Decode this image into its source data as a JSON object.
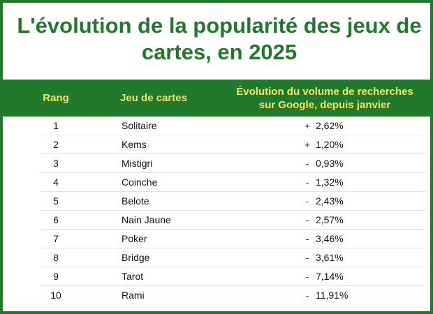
{
  "chart_data": {
    "type": "table",
    "title": "L'évolution de la popularité des jeux de cartes, en 2025",
    "columns": [
      "Rang",
      "Jeu de cartes",
      "Évolution du volume de recherches sur Google, depuis janvier"
    ],
    "rows": [
      {
        "rank": "1",
        "game": "Solitaire",
        "sign": "+",
        "change": "2,62%",
        "value": 2.62
      },
      {
        "rank": "2",
        "game": "Kems",
        "sign": "+",
        "change": "1,20%",
        "value": 1.2
      },
      {
        "rank": "3",
        "game": "Mistigri",
        "sign": "-",
        "change": "0,93%",
        "value": -0.93
      },
      {
        "rank": "4",
        "game": "Coinche",
        "sign": "-",
        "change": "1,32%",
        "value": -1.32
      },
      {
        "rank": "5",
        "game": "Belote",
        "sign": "-",
        "change": "2,43%",
        "value": -2.43
      },
      {
        "rank": "6",
        "game": "Nain Jaune",
        "sign": "-",
        "change": "2,57%",
        "value": -2.57
      },
      {
        "rank": "7",
        "game": "Poker",
        "sign": "-",
        "change": "3,46%",
        "value": -3.46
      },
      {
        "rank": "8",
        "game": "Bridge",
        "sign": "-",
        "change": "3,61%",
        "value": -3.61
      },
      {
        "rank": "9",
        "game": "Tarot",
        "sign": "-",
        "change": "7,14%",
        "value": -7.14
      },
      {
        "rank": "10",
        "game": "Rami",
        "sign": "-",
        "change": "11,91%",
        "value": -11.91
      }
    ]
  },
  "colors": {
    "accent": "#217a2b",
    "header_text": "#f7e36a",
    "row_text": "#111111",
    "separator": "#e2e2e2"
  }
}
